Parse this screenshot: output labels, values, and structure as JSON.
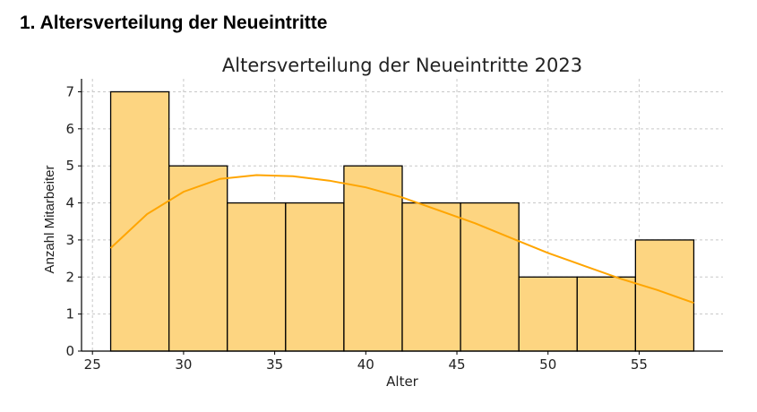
{
  "heading": "1. Altersverteilung der Neueintritte",
  "chart_data": {
    "type": "bar",
    "title": "Altersverteilung der Neueintritte 2023",
    "xlabel": "Alter",
    "ylabel": "Anzahl Mitarbeiter",
    "xlim": [
      24.4,
      59.6
    ],
    "ylim": [
      0,
      7.35
    ],
    "xticks": [
      25,
      30,
      35,
      40,
      45,
      50,
      55
    ],
    "yticks": [
      0,
      1,
      2,
      3,
      4,
      5,
      6,
      7
    ],
    "grid": true,
    "bin_edges": [
      26,
      29.2,
      32.4,
      35.6,
      38.8,
      42,
      45.2,
      48.4,
      51.6,
      54.8,
      58
    ],
    "values": [
      7,
      5,
      4,
      4,
      5,
      4,
      4,
      2,
      2,
      3
    ],
    "kde": {
      "x": [
        26,
        28,
        30,
        32,
        34,
        36,
        38,
        40,
        42,
        44,
        46,
        48,
        50,
        52,
        54,
        56,
        58
      ],
      "y": [
        2.78,
        3.7,
        4.3,
        4.65,
        4.75,
        4.72,
        4.6,
        4.42,
        4.15,
        3.8,
        3.45,
        3.05,
        2.65,
        2.3,
        1.95,
        1.65,
        1.3
      ]
    },
    "colors": {
      "bar": "#fdd581",
      "edge": "#000000",
      "kde": "#ffa500",
      "grid": "#c8c8c8"
    }
  }
}
